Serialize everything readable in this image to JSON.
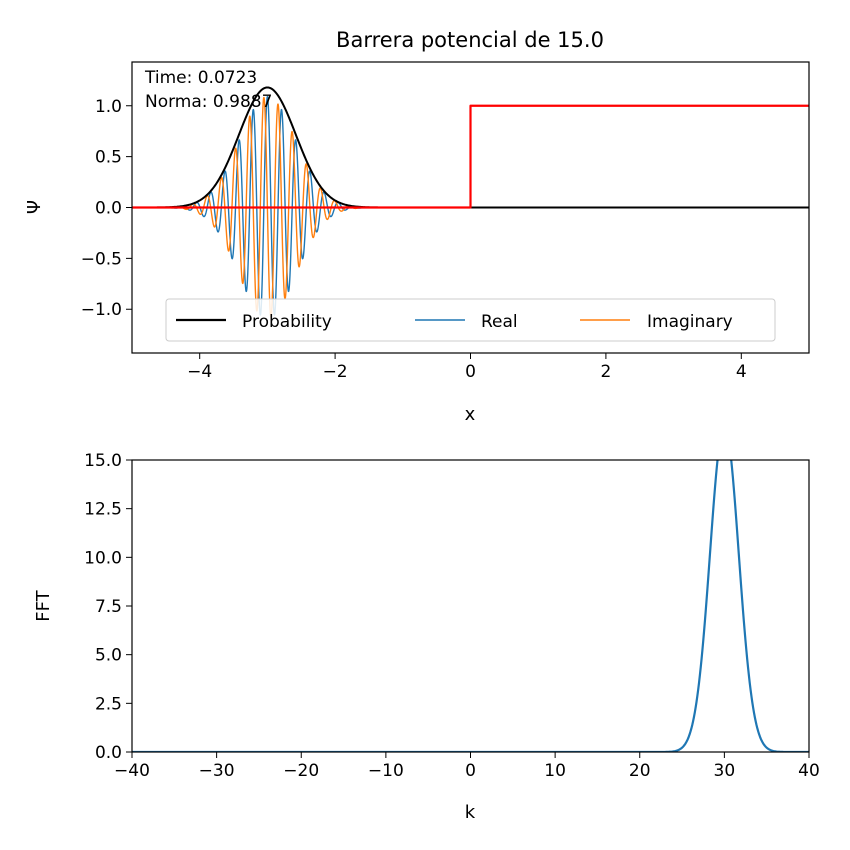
{
  "chart_data": [
    {
      "type": "line",
      "title": "Barrera potencial de 15.0",
      "xlabel": "x",
      "ylabel": "Ψ",
      "xlim": [
        -5,
        5
      ],
      "ylim": [
        -1.43,
        1.43
      ],
      "xticks": [
        -4,
        -2,
        0,
        2,
        4
      ],
      "xtick_labels": [
        "−4",
        "−2",
        "0",
        "2",
        "4"
      ],
      "yticks": [
        1.0,
        0.5,
        0.0,
        -0.5,
        -1.0
      ],
      "ytick_labels": [
        "1.0",
        "0.5",
        "0.0",
        "−0.5",
        "−1.0"
      ],
      "annotations": [
        "Time: 0.0723",
        "Norma: 0.9887"
      ],
      "legend": {
        "placement": "lower center",
        "entries": [
          "Probability",
          "Real",
          "Imaginary"
        ]
      },
      "series": [
        {
          "name": "Probability",
          "color": "#000000",
          "kind": "gaussian",
          "center": -3.0,
          "sigma": 0.42,
          "amplitude": 1.18
        },
        {
          "name": "Real",
          "color": "#1f77b4",
          "kind": "wavepacket",
          "center": -3.0,
          "sigma": 0.42,
          "amplitude": 1.09,
          "wavenumber": 30,
          "phase": 0
        },
        {
          "name": "Imaginary",
          "color": "#ff7f0e",
          "kind": "wavepacket",
          "center": -3.0,
          "sigma": 0.42,
          "amplitude": 1.09,
          "wavenumber": 30,
          "phase": 1.5708
        },
        {
          "name": "Potential",
          "color": "#ff0000",
          "kind": "step",
          "x": [
            -5,
            0,
            0,
            5
          ],
          "y": [
            0,
            0,
            1,
            1
          ]
        }
      ]
    },
    {
      "type": "line",
      "title": "",
      "xlabel": "k",
      "ylabel": "FFT",
      "xlim": [
        -40,
        40
      ],
      "ylim": [
        0,
        15
      ],
      "xticks": [
        -40,
        -30,
        -20,
        -10,
        0,
        10,
        20,
        30,
        40
      ],
      "xtick_labels": [
        "−40",
        "−30",
        "−20",
        "−10",
        "0",
        "10",
        "20",
        "30",
        "40"
      ],
      "yticks": [
        0.0,
        2.5,
        5.0,
        7.5,
        10.0,
        12.5,
        15.0
      ],
      "ytick_labels": [
        "0.0",
        "2.5",
        "5.0",
        "7.5",
        "10.0",
        "12.5",
        "15.0"
      ],
      "series": [
        {
          "name": "",
          "color": "#1f77b4",
          "kind": "gaussian",
          "center": 30,
          "sigma": 1.7,
          "amplitude": 16.8
        }
      ]
    }
  ]
}
